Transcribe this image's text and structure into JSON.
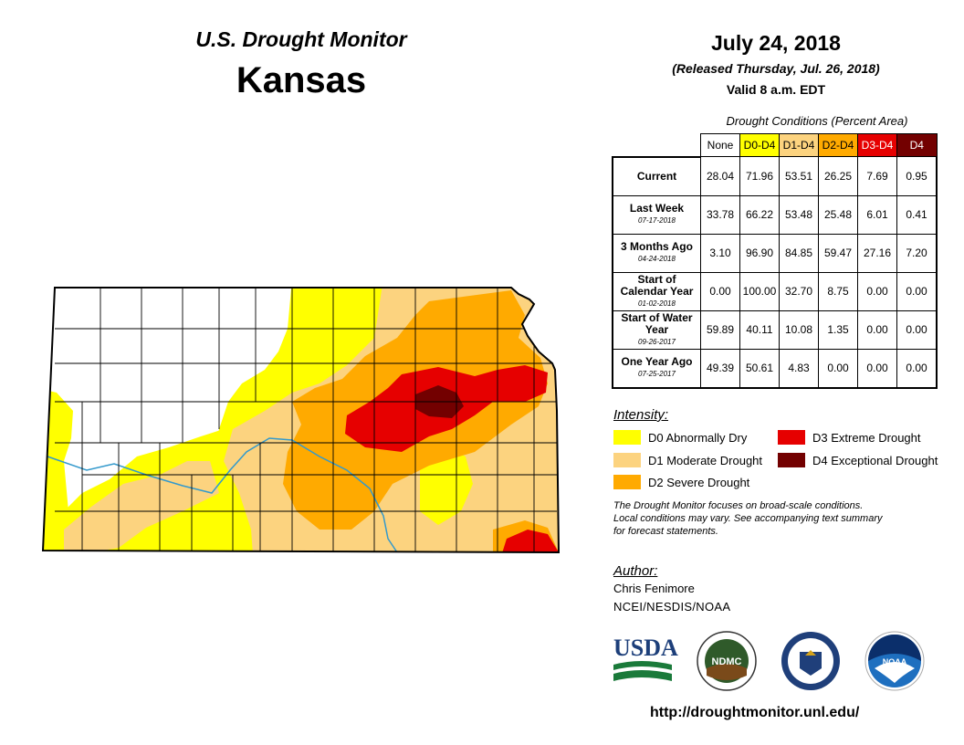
{
  "header": {
    "title": "U.S. Drought Monitor",
    "state": "Kansas",
    "date": "July 24, 2018",
    "released": "(Released Thursday, Jul. 26, 2018)",
    "valid": "Valid 8 a.m. EDT"
  },
  "table": {
    "caption": "Drought Conditions (Percent Area)",
    "columns": [
      {
        "label": "None",
        "bg": "#ffffff",
        "fg": "#000000"
      },
      {
        "label": "D0-D4",
        "bg": "#ffff00",
        "fg": "#000000"
      },
      {
        "label": "D1-D4",
        "bg": "#fcd37f",
        "fg": "#000000"
      },
      {
        "label": "D2-D4",
        "bg": "#ffaa00",
        "fg": "#000000"
      },
      {
        "label": "D3-D4",
        "bg": "#e60000",
        "fg": "#ffffff"
      },
      {
        "label": "D4",
        "bg": "#730000",
        "fg": "#ffffff"
      }
    ],
    "rows": [
      {
        "label": "Current",
        "sub": "",
        "values": [
          "28.04",
          "71.96",
          "53.51",
          "26.25",
          "7.69",
          "0.95"
        ]
      },
      {
        "label": "Last Week",
        "sub": "07-17-2018",
        "values": [
          "33.78",
          "66.22",
          "53.48",
          "25.48",
          "6.01",
          "0.41"
        ]
      },
      {
        "label": "3 Months Ago",
        "sub": "04-24-2018",
        "values": [
          "3.10",
          "96.90",
          "84.85",
          "59.47",
          "27.16",
          "7.20"
        ]
      },
      {
        "label": "Start of Calendar Year",
        "sub": "01-02-2018",
        "values": [
          "0.00",
          "100.00",
          "32.70",
          "8.75",
          "0.00",
          "0.00"
        ]
      },
      {
        "label": "Start of Water Year",
        "sub": "09-26-2017",
        "values": [
          "59.89",
          "40.11",
          "10.08",
          "1.35",
          "0.00",
          "0.00"
        ]
      },
      {
        "label": "One Year Ago",
        "sub": "07-25-2017",
        "values": [
          "49.39",
          "50.61",
          "4.83",
          "0.00",
          "0.00",
          "0.00"
        ]
      }
    ]
  },
  "legend": {
    "title": "Intensity:",
    "items": [
      {
        "label": "D0 Abnormally Dry",
        "color": "#ffff00"
      },
      {
        "label": "D1 Moderate Drought",
        "color": "#fcd37f"
      },
      {
        "label": "D2 Severe Drought",
        "color": "#ffaa00"
      },
      {
        "label": "D3 Extreme Drought",
        "color": "#e60000"
      },
      {
        "label": "D4 Exceptional Drought",
        "color": "#730000"
      }
    ],
    "note_lines": [
      "The Drought Monitor focuses on broad-scale conditions.",
      "Local conditions may vary. See accompanying text summary",
      "for forecast statements."
    ]
  },
  "author": {
    "title": "Author:",
    "name": "Chris Fenimore",
    "org": "NCEI/NESDIS/NOAA"
  },
  "logos": {
    "usda": "USDA",
    "ndmc": "NDMC",
    "noaa": "NOAA"
  },
  "footer": {
    "url": "http://droughtmonitor.unl.edu/"
  },
  "colors": {
    "none": "#ffffff",
    "d0": "#ffff00",
    "d1": "#fcd37f",
    "d2": "#ffaa00",
    "d3": "#e60000",
    "d4": "#730000",
    "river": "#3399cc"
  }
}
